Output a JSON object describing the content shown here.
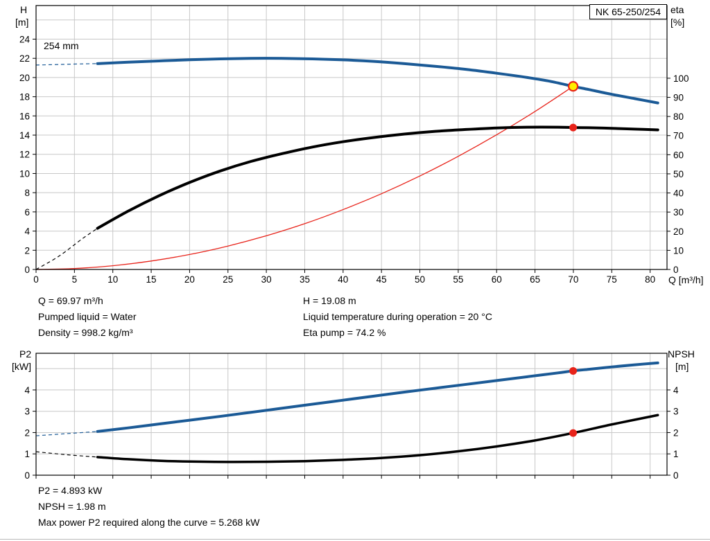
{
  "header": {
    "title_box": "NK 65-250/254",
    "impeller_label": "254 mm"
  },
  "colors": {
    "blue": "#1b5a96",
    "black": "#000000",
    "red": "#e8231a",
    "duty_fill": "#ffee00",
    "grid": "#c8c8c8",
    "axis": "#000000"
  },
  "chart_data": [
    {
      "type": "line",
      "name": "qh-eta-chart",
      "x_axis": {
        "label": "Q [m³/h]",
        "min": 0,
        "max": 82.2,
        "ticks": [
          0,
          5,
          10,
          15,
          20,
          25,
          30,
          35,
          40,
          45,
          50,
          55,
          60,
          65,
          70,
          75,
          80
        ],
        "show_labels": true
      },
      "left_axis": {
        "label": "H",
        "unit": "[m]",
        "min": 0,
        "max": 27.5,
        "ticks": [
          0,
          2,
          4,
          6,
          8,
          10,
          12,
          14,
          16,
          18,
          20,
          22,
          24
        ],
        "grid_extra": [
          26
        ]
      },
      "right_axis": {
        "label": "eta",
        "unit": "[%]",
        "min": 0,
        "max": 138,
        "ticks": [
          0,
          10,
          20,
          30,
          40,
          50,
          60,
          70,
          80,
          90,
          100
        ]
      },
      "series": [
        {
          "name": "system-curve",
          "axis": "left",
          "color": "red",
          "width": 1.3,
          "points": [
            [
              0,
              0
            ],
            [
              5,
              0.1
            ],
            [
              10,
              0.39
            ],
            [
              15,
              0.88
            ],
            [
              20,
              1.56
            ],
            [
              25,
              2.44
            ],
            [
              30,
              3.51
            ],
            [
              35,
              4.77
            ],
            [
              40,
              6.24
            ],
            [
              45,
              7.89
            ],
            [
              50,
              9.74
            ],
            [
              55,
              11.79
            ],
            [
              60,
              14.03
            ],
            [
              65,
              16.46
            ],
            [
              69.97,
              19.08
            ]
          ]
        },
        {
          "name": "efficiency-curve",
          "axis": "right",
          "color": "black",
          "width": 4,
          "dash_points": [
            [
              0,
              0
            ],
            [
              3,
              7
            ],
            [
              6,
              16
            ],
            [
              8,
              21.5
            ]
          ],
          "points": [
            [
              8,
              21.5
            ],
            [
              12,
              30.5
            ],
            [
              16,
              38.5
            ],
            [
              20,
              45.5
            ],
            [
              24,
              51.5
            ],
            [
              28,
              56.5
            ],
            [
              32,
              60.5
            ],
            [
              36,
              64
            ],
            [
              40,
              66.8
            ],
            [
              44,
              69
            ],
            [
              48,
              70.8
            ],
            [
              52,
              72.2
            ],
            [
              56,
              73.2
            ],
            [
              60,
              74
            ],
            [
              64,
              74.4
            ],
            [
              68,
              74.4
            ],
            [
              69.97,
              74.2
            ],
            [
              72,
              74.1
            ],
            [
              75,
              73.8
            ],
            [
              78,
              73.4
            ],
            [
              81,
              73
            ]
          ]
        },
        {
          "name": "head-curve",
          "axis": "left",
          "color": "blue",
          "width": 4,
          "dash_points": [
            [
              0,
              21.3
            ],
            [
              3,
              21.36
            ],
            [
              6,
              21.42
            ],
            [
              8,
              21.45
            ]
          ],
          "points": [
            [
              8,
              21.45
            ],
            [
              12,
              21.6
            ],
            [
              16,
              21.73
            ],
            [
              20,
              21.85
            ],
            [
              24,
              21.94
            ],
            [
              28,
              22
            ],
            [
              32,
              22
            ],
            [
              36,
              21.94
            ],
            [
              40,
              21.84
            ],
            [
              44,
              21.68
            ],
            [
              48,
              21.45
            ],
            [
              52,
              21.17
            ],
            [
              56,
              20.85
            ],
            [
              60,
              20.45
            ],
            [
              64,
              20
            ],
            [
              67,
              19.6
            ],
            [
              69.97,
              19.08
            ],
            [
              72,
              18.75
            ],
            [
              75,
              18.25
            ],
            [
              78,
              17.8
            ],
            [
              81,
              17.35
            ]
          ]
        }
      ],
      "markers": [
        {
          "type": "dot",
          "name": "eta-duty-dot",
          "x": 69.97,
          "y": 74.2,
          "axis": "right"
        },
        {
          "type": "duty",
          "name": "duty-point",
          "x": 69.97,
          "y": 19.08,
          "axis": "left"
        }
      ]
    },
    {
      "type": "line",
      "name": "p2-npsh-chart",
      "x_axis": {
        "label": "",
        "min": 0,
        "max": 82.2,
        "ticks": [
          0,
          5,
          10,
          15,
          20,
          25,
          30,
          35,
          40,
          45,
          50,
          55,
          60,
          65,
          70,
          75,
          80
        ],
        "show_labels": false
      },
      "left_axis": {
        "label": "P2",
        "unit": "[kW]",
        "min": 0,
        "max": 5.72,
        "ticks": [
          0,
          1,
          2,
          3,
          4
        ],
        "grid_extra": [
          5
        ]
      },
      "right_axis": {
        "label": "NPSH",
        "unit": "[m]",
        "min": 0,
        "max": 5.72,
        "ticks": [
          0,
          1,
          2,
          3,
          4
        ]
      },
      "series": [
        {
          "name": "npsh-curve",
          "axis": "right",
          "color": "black",
          "width": 3.5,
          "dash_points": [
            [
              0,
              1.1
            ],
            [
              4,
              0.96
            ],
            [
              8,
              0.85
            ]
          ],
          "points": [
            [
              8,
              0.85
            ],
            [
              12,
              0.75
            ],
            [
              16,
              0.68
            ],
            [
              20,
              0.64
            ],
            [
              25,
              0.62
            ],
            [
              30,
              0.63
            ],
            [
              35,
              0.66
            ],
            [
              40,
              0.72
            ],
            [
              45,
              0.81
            ],
            [
              50,
              0.94
            ],
            [
              55,
              1.12
            ],
            [
              60,
              1.35
            ],
            [
              65,
              1.63
            ],
            [
              69.97,
              1.98
            ],
            [
              75,
              2.38
            ],
            [
              81,
              2.82
            ]
          ]
        },
        {
          "name": "p2-curve",
          "axis": "left",
          "color": "blue",
          "width": 4,
          "dash_points": [
            [
              0,
              1.85
            ],
            [
              4,
              1.95
            ],
            [
              8,
              2.05
            ]
          ],
          "points": [
            [
              8,
              2.05
            ],
            [
              12,
              2.22
            ],
            [
              16,
              2.4
            ],
            [
              20,
              2.58
            ],
            [
              24,
              2.76
            ],
            [
              28,
              2.95
            ],
            [
              32,
              3.14
            ],
            [
              36,
              3.33
            ],
            [
              40,
              3.52
            ],
            [
              44,
              3.71
            ],
            [
              48,
              3.9
            ],
            [
              52,
              4.08
            ],
            [
              56,
              4.26
            ],
            [
              60,
              4.44
            ],
            [
              64,
              4.62
            ],
            [
              68,
              4.8
            ],
            [
              69.97,
              4.893
            ],
            [
              72,
              4.97
            ],
            [
              75,
              5.08
            ],
            [
              78,
              5.18
            ],
            [
              81,
              5.27
            ]
          ]
        }
      ],
      "markers": [
        {
          "type": "dot",
          "name": "p2-duty-dot",
          "x": 69.97,
          "y": 4.893,
          "axis": "left"
        },
        {
          "type": "dot",
          "name": "npsh-duty-dot",
          "x": 69.97,
          "y": 1.98,
          "axis": "right"
        }
      ]
    }
  ],
  "info_panel": {
    "left": [
      "Q = 69.97 m³/h",
      "Pumped liquid = Water",
      "Density = 998.2 kg/m³"
    ],
    "right": [
      "H = 19.08 m",
      "Liquid temperature during operation = 20 °C",
      "Eta pump = 74.2 %"
    ]
  },
  "footer_panel": {
    "lines": [
      "P2 = 4.893 kW",
      "NPSH = 1.98 m",
      "Max power P2 required along the curve = 5.268 kW"
    ]
  }
}
